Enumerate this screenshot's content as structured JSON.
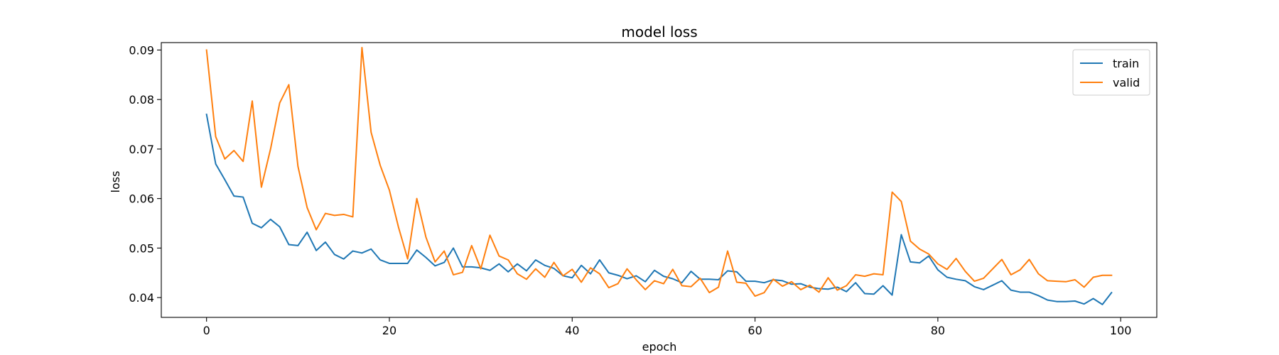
{
  "chart_data": {
    "type": "line",
    "title": "model loss",
    "xlabel": "epoch",
    "ylabel": "loss",
    "xlim": [
      -4.95,
      103.95
    ],
    "ylim": [
      0.036,
      0.0915
    ],
    "xticks": [
      0,
      20,
      40,
      60,
      80,
      100
    ],
    "yticks": [
      0.04,
      0.05,
      0.06,
      0.07,
      0.08,
      0.09
    ],
    "ytick_labels": [
      "0.04",
      "0.05",
      "0.06",
      "0.07",
      "0.08",
      "0.09"
    ],
    "grid": false,
    "legend_position": "top-right",
    "x": [
      0,
      1,
      2,
      3,
      4,
      5,
      6,
      7,
      8,
      9,
      10,
      11,
      12,
      13,
      14,
      15,
      16,
      17,
      18,
      19,
      20,
      21,
      22,
      23,
      24,
      25,
      26,
      27,
      28,
      29,
      30,
      31,
      32,
      33,
      34,
      35,
      36,
      37,
      38,
      39,
      40,
      41,
      42,
      43,
      44,
      45,
      46,
      47,
      48,
      49,
      50,
      51,
      52,
      53,
      54,
      55,
      56,
      57,
      58,
      59,
      60,
      61,
      62,
      63,
      64,
      65,
      66,
      67,
      68,
      69,
      70,
      71,
      72,
      73,
      74,
      75,
      76,
      77,
      78,
      79,
      80,
      81,
      82,
      83,
      84,
      85,
      86,
      87,
      88,
      89,
      90,
      91,
      92,
      93,
      94,
      95,
      96,
      97,
      98,
      99
    ],
    "series": [
      {
        "name": "train",
        "color": "#1f77b4",
        "values": [
          0.077,
          0.067,
          0.0638,
          0.0605,
          0.0603,
          0.055,
          0.0541,
          0.0558,
          0.0543,
          0.0507,
          0.0505,
          0.0532,
          0.0495,
          0.0512,
          0.0487,
          0.0478,
          0.0494,
          0.049,
          0.0498,
          0.0476,
          0.0469,
          0.0469,
          0.0469,
          0.0496,
          0.0481,
          0.0464,
          0.0471,
          0.05,
          0.0462,
          0.0462,
          0.046,
          0.0455,
          0.0468,
          0.0452,
          0.0468,
          0.0454,
          0.0476,
          0.0465,
          0.0459,
          0.0444,
          0.044,
          0.0465,
          0.0448,
          0.0476,
          0.045,
          0.0445,
          0.0438,
          0.0444,
          0.0432,
          0.0455,
          0.0443,
          0.0438,
          0.043,
          0.0453,
          0.0437,
          0.0437,
          0.0436,
          0.0454,
          0.0452,
          0.0433,
          0.0433,
          0.043,
          0.0436,
          0.0434,
          0.0427,
          0.0428,
          0.0421,
          0.0418,
          0.0417,
          0.0421,
          0.0412,
          0.043,
          0.0408,
          0.0407,
          0.0424,
          0.0405,
          0.0527,
          0.0472,
          0.047,
          0.0484,
          0.0456,
          0.0441,
          0.0437,
          0.0434,
          0.0422,
          0.0416,
          0.0425,
          0.0434,
          0.0415,
          0.0411,
          0.0411,
          0.0404,
          0.0395,
          0.0392,
          0.0392,
          0.0393,
          0.0387,
          0.0398,
          0.0386,
          0.041
        ]
      },
      {
        "name": "valid",
        "color": "#ff7f0e",
        "values": [
          0.09,
          0.0725,
          0.068,
          0.0697,
          0.0675,
          0.0797,
          0.0623,
          0.07,
          0.0793,
          0.083,
          0.0665,
          0.0582,
          0.0537,
          0.057,
          0.0566,
          0.0568,
          0.0563,
          0.0905,
          0.0734,
          0.0667,
          0.0617,
          0.0542,
          0.0478,
          0.06,
          0.0522,
          0.0472,
          0.0494,
          0.0446,
          0.0451,
          0.0505,
          0.0458,
          0.0526,
          0.0484,
          0.0476,
          0.0448,
          0.0437,
          0.0458,
          0.0441,
          0.0471,
          0.0444,
          0.0457,
          0.0431,
          0.046,
          0.0448,
          0.042,
          0.0428,
          0.0458,
          0.0436,
          0.0416,
          0.0434,
          0.0428,
          0.0457,
          0.0424,
          0.0422,
          0.0439,
          0.041,
          0.0421,
          0.0494,
          0.0431,
          0.0429,
          0.0403,
          0.041,
          0.0437,
          0.0423,
          0.0432,
          0.0416,
          0.0425,
          0.0411,
          0.044,
          0.0415,
          0.0424,
          0.0446,
          0.0443,
          0.0448,
          0.0446,
          0.0613,
          0.0594,
          0.0514,
          0.0498,
          0.0488,
          0.0468,
          0.0457,
          0.0479,
          0.0453,
          0.0433,
          0.0439,
          0.0458,
          0.0477,
          0.0446,
          0.0456,
          0.0477,
          0.0448,
          0.0434,
          0.0433,
          0.0432,
          0.0436,
          0.0421,
          0.0441,
          0.0445,
          0.0445
        ]
      }
    ]
  }
}
